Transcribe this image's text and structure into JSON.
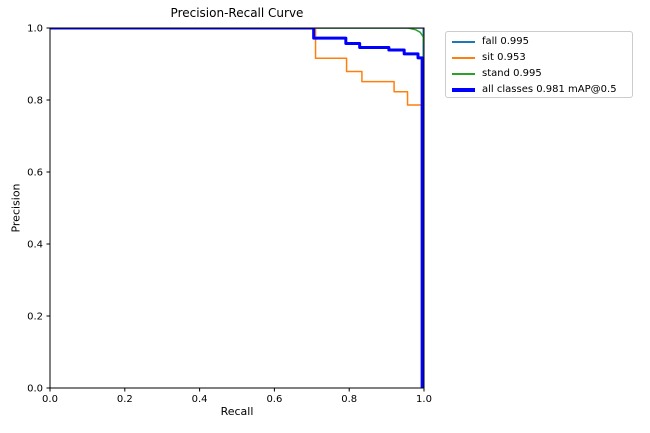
{
  "figure": {
    "background": "#ffffff",
    "spine_color": "#000000",
    "tick_color": "#000000",
    "text_color": "#000000"
  },
  "chart_data": {
    "type": "line",
    "title": "Precision-Recall Curve",
    "xlabel": "Recall",
    "ylabel": "Precision",
    "xlim": [
      0.0,
      1.0
    ],
    "ylim": [
      0.0,
      1.0
    ],
    "xticks": [
      0.0,
      0.2,
      0.4,
      0.6,
      0.8,
      1.0
    ],
    "yticks": [
      0.0,
      0.2,
      0.4,
      0.6,
      0.8,
      1.0
    ],
    "grid": false,
    "legend": {
      "position": "upper-right-outside",
      "border_color": "#cccccc",
      "background": "#ffffff"
    },
    "series": [
      {
        "name": "fall",
        "label": "fall 0.995",
        "ap": 0.995,
        "color": "#1f77b4",
        "line_width": 1.5,
        "points": [
          [
            0.0,
            1.0
          ],
          [
            0.998,
            1.0
          ],
          [
            0.998,
            0.0
          ]
        ]
      },
      {
        "name": "sit",
        "label": "sit 0.953",
        "ap": 0.953,
        "color": "#ff7f0e",
        "line_width": 1.5,
        "points": [
          [
            0.0,
            1.0
          ],
          [
            0.71,
            1.0
          ],
          [
            0.71,
            0.916
          ],
          [
            0.793,
            0.916
          ],
          [
            0.793,
            0.879
          ],
          [
            0.834,
            0.879
          ],
          [
            0.834,
            0.851
          ],
          [
            0.92,
            0.851
          ],
          [
            0.92,
            0.823
          ],
          [
            0.956,
            0.823
          ],
          [
            0.956,
            0.786
          ],
          [
            0.997,
            0.786
          ],
          [
            0.997,
            0.0
          ]
        ]
      },
      {
        "name": "stand",
        "label": "stand 0.995",
        "ap": 0.995,
        "color": "#2ca02c",
        "line_width": 1.5,
        "points": [
          [
            0.0,
            1.0
          ],
          [
            0.957,
            1.0
          ],
          [
            0.978,
            0.995
          ],
          [
            0.99,
            0.988
          ],
          [
            0.998,
            0.975
          ],
          [
            1.0,
            0.95
          ],
          [
            1.0,
            0.0
          ]
        ]
      },
      {
        "name": "all classes",
        "label": "all classes 0.981 mAP@0.5",
        "ap": 0.981,
        "color": "#0000ff",
        "line_width": 3,
        "points": [
          [
            0.0,
            1.0
          ],
          [
            0.705,
            1.0
          ],
          [
            0.705,
            0.972
          ],
          [
            0.791,
            0.972
          ],
          [
            0.791,
            0.957
          ],
          [
            0.828,
            0.957
          ],
          [
            0.828,
            0.946
          ],
          [
            0.906,
            0.946
          ],
          [
            0.906,
            0.939
          ],
          [
            0.947,
            0.939
          ],
          [
            0.947,
            0.928
          ],
          [
            0.984,
            0.928
          ],
          [
            0.984,
            0.917
          ],
          [
            0.995,
            0.917
          ],
          [
            0.995,
            0.0
          ]
        ]
      }
    ]
  }
}
